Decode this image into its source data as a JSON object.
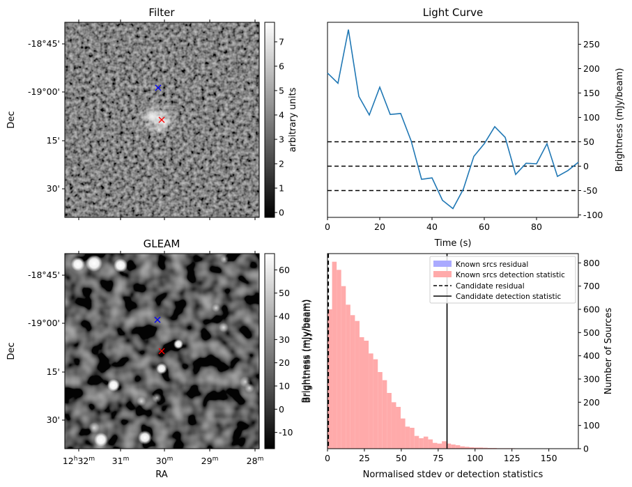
{
  "chart_data": [
    {
      "type": "heatmap",
      "title": "Filter",
      "ylabel": "Dec",
      "yticks": [
        "-18°45'",
        "-19°00'",
        "15'",
        "30'"
      ],
      "colorbar": {
        "label": "arbitrary units",
        "range": [
          -0.2,
          7.8
        ],
        "ticks": [
          "0",
          "1",
          "2",
          "3",
          "4",
          "5",
          "6",
          "7"
        ]
      },
      "markers": [
        {
          "symbol": "x",
          "color": "#0000ff"
        },
        {
          "symbol": "x",
          "color": "#ff0000"
        }
      ]
    },
    {
      "type": "line",
      "title": "Light Curve",
      "xlabel": "Time (s)",
      "ylabel": "Brightness (mJy/beam)",
      "xlim": [
        0,
        96
      ],
      "ylim": [
        -105,
        295
      ],
      "xticks": [
        "0",
        "20",
        "40",
        "60",
        "80"
      ],
      "yticks": [
        "-100",
        "-50",
        "0",
        "50",
        "100",
        "150",
        "200",
        "250"
      ],
      "x": [
        0,
        4,
        8,
        12,
        16,
        20,
        24,
        28,
        32,
        36,
        40,
        44,
        48,
        52,
        56,
        60,
        64,
        68,
        72,
        76,
        80,
        84,
        88,
        92,
        96
      ],
      "series": [
        {
          "color": "#1f77b4",
          "values": [
            191,
            170,
            280,
            143,
            105,
            162,
            106,
            108,
            52,
            -27,
            -24,
            -70,
            -87,
            -47,
            20,
            46,
            81,
            59,
            -17,
            6,
            5,
            46,
            -21,
            -9,
            8
          ]
        }
      ],
      "hlines": [
        50,
        0,
        -50
      ],
      "hline_style": "dashed black"
    },
    {
      "type": "heatmap",
      "title": "GLEAM",
      "xlabel": "RA",
      "ylabel": "Dec",
      "yticks": [
        "-18°45'",
        "-19°00'",
        "15'",
        "30'"
      ],
      "xticks": [
        "12h32m",
        "31m",
        "30m",
        "29m",
        "28m"
      ],
      "colorbar": {
        "label": "Brightness (mJy/beam)",
        "range": [
          -17,
          67
        ],
        "ticks": [
          "-10",
          "0",
          "10",
          "20",
          "30",
          "40",
          "50",
          "60"
        ]
      },
      "markers": [
        {
          "symbol": "x",
          "color": "#0000ff"
        },
        {
          "symbol": "x",
          "color": "#ff0000"
        }
      ]
    },
    {
      "type": "bar",
      "xlabel": "Normalised stdev or detection statistics",
      "ylabel_left": "Brightness (mJy/beam)",
      "ylabel_right": "Number of Sources",
      "xlim": [
        0,
        170
      ],
      "ylim": [
        0,
        840
      ],
      "xticks": [
        "0",
        "25",
        "50",
        "75",
        "100",
        "125",
        "150"
      ],
      "yticks": [
        "0",
        "100",
        "200",
        "300",
        "400",
        "500",
        "600",
        "700",
        "800"
      ],
      "bin_width": 3.1,
      "bin_start": 0,
      "counts": [
        600,
        805,
        770,
        700,
        620,
        575,
        550,
        480,
        465,
        410,
        385,
        330,
        295,
        240,
        200,
        180,
        130,
        95,
        90,
        55,
        45,
        52,
        40,
        25,
        22,
        32,
        22,
        18,
        15,
        10,
        8,
        6,
        5,
        5,
        4,
        3,
        3,
        2,
        2,
        2,
        2,
        1,
        1,
        1,
        1,
        1,
        1,
        1,
        1,
        1,
        1,
        1,
        1,
        1
      ],
      "vlines": [
        {
          "name": "Candidate residual",
          "x": 0.6,
          "style": "dashed"
        },
        {
          "name": "Candidate detection statistic",
          "x": 81,
          "style": "solid"
        }
      ],
      "legend": {
        "placement": "top-right",
        "entries": [
          "Known srcs residual",
          "Known srcs detection statistic",
          "Candidate residual",
          "Candidate detection statistic"
        ]
      },
      "colors": {
        "residual": "#aaaaff",
        "detection": "#ffaaaa"
      }
    }
  ]
}
